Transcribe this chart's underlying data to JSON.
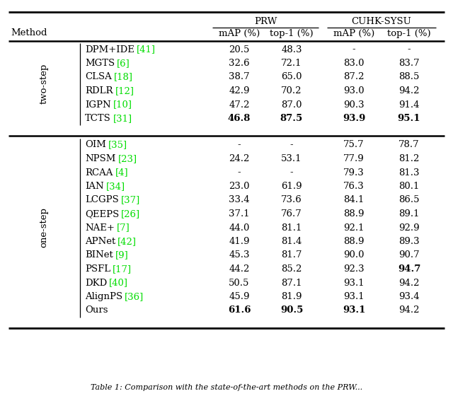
{
  "two_step_rows": [
    {
      "method": "DPM+IDE",
      "ref": "41",
      "prw_map": "20.5",
      "prw_top1": "48.3",
      "cuhk_map": "-",
      "cuhk_top1": "-",
      "bold": []
    },
    {
      "method": "MGTS",
      "ref": "6",
      "prw_map": "32.6",
      "prw_top1": "72.1",
      "cuhk_map": "83.0",
      "cuhk_top1": "83.7",
      "bold": []
    },
    {
      "method": "CLSA",
      "ref": "18",
      "prw_map": "38.7",
      "prw_top1": "65.0",
      "cuhk_map": "87.2",
      "cuhk_top1": "88.5",
      "bold": []
    },
    {
      "method": "RDLR",
      "ref": "12",
      "prw_map": "42.9",
      "prw_top1": "70.2",
      "cuhk_map": "93.0",
      "cuhk_top1": "94.2",
      "bold": []
    },
    {
      "method": "IGPN",
      "ref": "10",
      "prw_map": "47.2",
      "prw_top1": "87.0",
      "cuhk_map": "90.3",
      "cuhk_top1": "91.4",
      "bold": []
    },
    {
      "method": "TCTS",
      "ref": "31",
      "prw_map": "46.8",
      "prw_top1": "87.5",
      "cuhk_map": "93.9",
      "cuhk_top1": "95.1",
      "bold": [
        "prw_map",
        "prw_top1",
        "cuhk_map",
        "cuhk_top1"
      ]
    }
  ],
  "one_step_rows": [
    {
      "method": "OIM",
      "ref": "35",
      "prw_map": "-",
      "prw_top1": "-",
      "cuhk_map": "75.7",
      "cuhk_top1": "78.7",
      "bold": []
    },
    {
      "method": "NPSM",
      "ref": "23",
      "prw_map": "24.2",
      "prw_top1": "53.1",
      "cuhk_map": "77.9",
      "cuhk_top1": "81.2",
      "bold": []
    },
    {
      "method": "RCAA",
      "ref": "4",
      "prw_map": "-",
      "prw_top1": "-",
      "cuhk_map": "79.3",
      "cuhk_top1": "81.3",
      "bold": []
    },
    {
      "method": "IAN",
      "ref": "34",
      "prw_map": "23.0",
      "prw_top1": "61.9",
      "cuhk_map": "76.3",
      "cuhk_top1": "80.1",
      "bold": []
    },
    {
      "method": "LCGPS",
      "ref": "37",
      "prw_map": "33.4",
      "prw_top1": "73.6",
      "cuhk_map": "84.1",
      "cuhk_top1": "86.5",
      "bold": []
    },
    {
      "method": "QEEPS",
      "ref": "26",
      "prw_map": "37.1",
      "prw_top1": "76.7",
      "cuhk_map": "88.9",
      "cuhk_top1": "89.1",
      "bold": []
    },
    {
      "method": "NAE+",
      "ref": "7",
      "prw_map": "44.0",
      "prw_top1": "81.1",
      "cuhk_map": "92.1",
      "cuhk_top1": "92.9",
      "bold": []
    },
    {
      "method": "APNet",
      "ref": "42",
      "prw_map": "41.9",
      "prw_top1": "81.4",
      "cuhk_map": "88.9",
      "cuhk_top1": "89.3",
      "bold": []
    },
    {
      "method": "BINet",
      "ref": "9",
      "prw_map": "45.3",
      "prw_top1": "81.7",
      "cuhk_map": "90.0",
      "cuhk_top1": "90.7",
      "bold": []
    },
    {
      "method": "PSFL",
      "ref": "17",
      "prw_map": "44.2",
      "prw_top1": "85.2",
      "cuhk_map": "92.3",
      "cuhk_top1": "94.7",
      "bold": [
        "cuhk_top1"
      ]
    },
    {
      "method": "DKD",
      "ref": "40",
      "prw_map": "50.5",
      "prw_top1": "87.1",
      "cuhk_map": "93.1",
      "cuhk_top1": "94.2",
      "bold": []
    },
    {
      "method": "AlignPS",
      "ref": "36",
      "prw_map": "45.9",
      "prw_top1": "81.9",
      "cuhk_map": "93.1",
      "cuhk_top1": "93.4",
      "bold": []
    },
    {
      "method": "Ours",
      "ref": "",
      "prw_map": "61.6",
      "prw_top1": "90.5",
      "cuhk_map": "93.1",
      "cuhk_top1": "94.2",
      "bold": [
        "prw_map",
        "prw_top1",
        "cuhk_map"
      ]
    }
  ],
  "green_color": "#00DD00",
  "black_color": "#000000",
  "bg_color": "#FFFFFF",
  "caption": "Table 1: Comparison with the state-of-the-art methods on the PRW..."
}
